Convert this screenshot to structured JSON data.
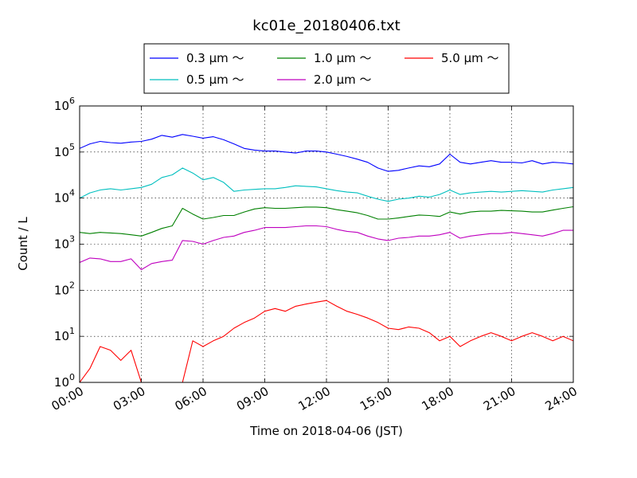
{
  "chart_data": {
    "type": "line",
    "title": "kc01e_20180406.txt",
    "xlabel": "Time on 2018-04-06 (JST)",
    "ylabel": "Count / L",
    "xlim": [
      "00:00",
      "24:00"
    ],
    "ylim": [
      1,
      1000000
    ],
    "yscale": "log",
    "grid": true,
    "legend_placement": "top-center",
    "x_ticks": [
      "00:00",
      "03:00",
      "06:00",
      "09:00",
      "12:00",
      "15:00",
      "18:00",
      "21:00",
      "24:00"
    ],
    "y_ticks": [
      {
        "base": "10",
        "exp": "0"
      },
      {
        "base": "10",
        "exp": "1"
      },
      {
        "base": "10",
        "exp": "2"
      },
      {
        "base": "10",
        "exp": "3"
      },
      {
        "base": "10",
        "exp": "4"
      },
      {
        "base": "10",
        "exp": "5"
      },
      {
        "base": "10",
        "exp": "6"
      }
    ],
    "x_hours": [
      0,
      0.5,
      1,
      1.5,
      2,
      2.5,
      3,
      3.5,
      4,
      4.5,
      5,
      5.5,
      6,
      6.5,
      7,
      7.5,
      8,
      8.5,
      9,
      9.5,
      10,
      10.5,
      11,
      11.5,
      12,
      12.5,
      13,
      13.5,
      14,
      14.5,
      15,
      15.5,
      16,
      16.5,
      17,
      17.5,
      18,
      18.5,
      19,
      19.5,
      20,
      20.5,
      21,
      21.5,
      22,
      22.5,
      23,
      23.5,
      24
    ],
    "series": [
      {
        "name": "0.3 μm ～",
        "color": "#0000ff",
        "values": [
          120000,
          150000,
          170000,
          160000,
          155000,
          165000,
          170000,
          190000,
          230000,
          210000,
          240000,
          220000,
          200000,
          215000,
          185000,
          150000,
          120000,
          110000,
          105000,
          105000,
          100000,
          95000,
          105000,
          105000,
          100000,
          90000,
          80000,
          70000,
          60000,
          45000,
          38000,
          40000,
          45000,
          50000,
          48000,
          55000,
          90000,
          60000,
          55000,
          60000,
          65000,
          60000,
          60000,
          58000,
          65000,
          55000,
          60000,
          58000,
          55000
        ]
      },
      {
        "name": "0.5 μm ～",
        "color": "#00bfbf",
        "values": [
          10000,
          13000,
          15000,
          16000,
          15000,
          16000,
          17000,
          20000,
          28000,
          32000,
          45000,
          35000,
          25000,
          28000,
          22000,
          14000,
          15000,
          15500,
          16000,
          16000,
          17000,
          18500,
          18000,
          17500,
          16000,
          14500,
          13500,
          13000,
          11000,
          9500,
          8500,
          9500,
          10000,
          11000,
          10500,
          12000,
          15000,
          12000,
          13000,
          13500,
          14000,
          13500,
          14000,
          14500,
          14000,
          13500,
          15000,
          16000,
          17000
        ]
      },
      {
        "name": "1.0 μm ～",
        "color": "#008000",
        "values": [
          1800,
          1700,
          1800,
          1750,
          1700,
          1600,
          1500,
          1800,
          2200,
          2500,
          6000,
          4500,
          3500,
          3800,
          4200,
          4200,
          5000,
          5800,
          6200,
          6000,
          6000,
          6200,
          6400,
          6400,
          6200,
          5600,
          5200,
          4800,
          4200,
          3500,
          3500,
          3700,
          4000,
          4300,
          4200,
          4000,
          5000,
          4500,
          5000,
          5200,
          5200,
          5400,
          5300,
          5200,
          5000,
          5000,
          5500,
          6000,
          6500
        ]
      },
      {
        "name": "2.0 μm ～",
        "color": "#bf00bf",
        "values": [
          400,
          500,
          480,
          420,
          420,
          480,
          280,
          380,
          420,
          450,
          1200,
          1150,
          1000,
          1200,
          1400,
          1500,
          1800,
          2000,
          2300,
          2300,
          2300,
          2400,
          2500,
          2500,
          2400,
          2100,
          1900,
          1800,
          1500,
          1300,
          1200,
          1350,
          1400,
          1500,
          1500,
          1600,
          1800,
          1350,
          1500,
          1600,
          1700,
          1700,
          1800,
          1700,
          1600,
          1500,
          1700,
          2000,
          2000
        ]
      },
      {
        "name": "5.0 μm ～",
        "color": "#ff0000",
        "values": [
          1,
          2,
          6,
          5,
          3,
          5,
          1,
          1,
          1,
          1,
          1,
          8,
          6,
          8,
          10,
          15,
          20,
          25,
          35,
          40,
          35,
          45,
          50,
          55,
          60,
          45,
          35,
          30,
          25,
          20,
          15,
          14,
          16,
          15,
          12,
          8,
          10,
          6,
          8,
          10,
          12,
          10,
          8,
          10,
          12,
          10,
          8,
          10,
          8
        ]
      }
    ]
  },
  "legend": {
    "items": [
      {
        "label": "0.3 μm ～",
        "color": "#0000ff"
      },
      {
        "label": "1.0 μm ～",
        "color": "#008000"
      },
      {
        "label": "5.0 μm ～",
        "color": "#ff0000"
      },
      {
        "label": "0.5 μm ～",
        "color": "#00bfbf"
      },
      {
        "label": "2.0 μm ～",
        "color": "#bf00bf"
      }
    ]
  }
}
